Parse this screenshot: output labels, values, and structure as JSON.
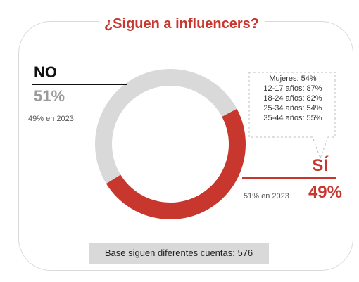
{
  "title": "¿Siguen a influencers?",
  "colors": {
    "no": "#d9d9d9",
    "si": "#c8372d",
    "accent": "#c8372d"
  },
  "no": {
    "label": "NO",
    "pct": "51%",
    "prev": "49% en 2023"
  },
  "si": {
    "label": "SÍ",
    "pct": "49%",
    "prev": "51% en 2023"
  },
  "breakdown": [
    "Mujeres: 54%",
    "12-17 años: 87%",
    "18-24 años: 82%",
    "25-34 años: 54%",
    "35-44 años: 55%"
  ],
  "base_note": "Base siguen diferentes cuentas: 576",
  "chart_data": {
    "type": "pie",
    "donut": true,
    "categories": [
      "NO",
      "SÍ"
    ],
    "values": [
      51,
      49
    ],
    "title": "¿Siguen a influencers?"
  }
}
